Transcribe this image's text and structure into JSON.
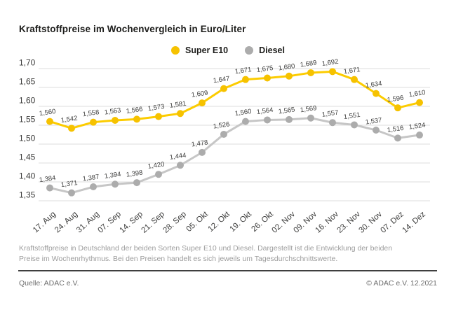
{
  "title": "Kraftstoffpreise im Wochenvergleich in Euro/Liter",
  "footnote": "Kraftstoffpreise in Deutschland der beiden Sorten Super E10 und Diesel. Dargestellt ist die Entwicklung der beiden Preise im Wochenrhythmus. Bei den Preisen handelt es sich jeweils um Tagesdurchschnittswerte.",
  "source_label": "Quelle: ADAC e.V.",
  "copyright_label": "© ADAC e.V. 12.2021",
  "colors": {
    "super_e10_dot": "#F6C200",
    "super_e10_line": "#FCCC00",
    "diesel_dot": "#ACACAC",
    "diesel_line": "#C6C6C6",
    "grid": "#DCDCDC",
    "title_text": "#1D1D1B",
    "axis_text": "#3C3C3B",
    "label_text": "#3C3C3B",
    "footnote_text": "#9D9D9D",
    "footer_text": "#6E6E6E",
    "divider": "#3F3F3F"
  },
  "chart_data": {
    "type": "line",
    "title": "Kraftstoffpreise im Wochenvergleich in Euro/Liter",
    "xlabel": "",
    "ylabel": "Euro/Liter",
    "ylim": [
      1.35,
      1.7
    ],
    "ytick_step": 0.05,
    "grid": true,
    "legend_position": "top-center",
    "decimal_separator": ",",
    "value_decimals": 3,
    "tick_decimals": 2,
    "categories": [
      "17. Aug",
      "24. Aug",
      "31. Aug",
      "07. Sep",
      "14. Sep",
      "21. Sep",
      "28. Sep",
      "05. Okt",
      "12. Okt",
      "19. Okt",
      "26. Okt",
      "02. Nov",
      "09. Nov",
      "16. Nov",
      "23. Nov",
      "30. Nov",
      "07. Dez",
      "14. Dez"
    ],
    "series": [
      {
        "name": "Super E10",
        "color": "#F6C200",
        "line_color": "#FCCC00",
        "values": [
          1.56,
          1.542,
          1.558,
          1.563,
          1.566,
          1.573,
          1.581,
          1.609,
          1.647,
          1.671,
          1.675,
          1.68,
          1.689,
          1.692,
          1.671,
          1.634,
          1.596,
          1.61
        ]
      },
      {
        "name": "Diesel",
        "color": "#ACACAC",
        "line_color": "#C6C6C6",
        "values": [
          1.384,
          1.371,
          1.387,
          1.394,
          1.398,
          1.42,
          1.444,
          1.478,
          1.526,
          1.56,
          1.564,
          1.565,
          1.569,
          1.557,
          1.551,
          1.537,
          1.516,
          1.524
        ]
      }
    ]
  }
}
